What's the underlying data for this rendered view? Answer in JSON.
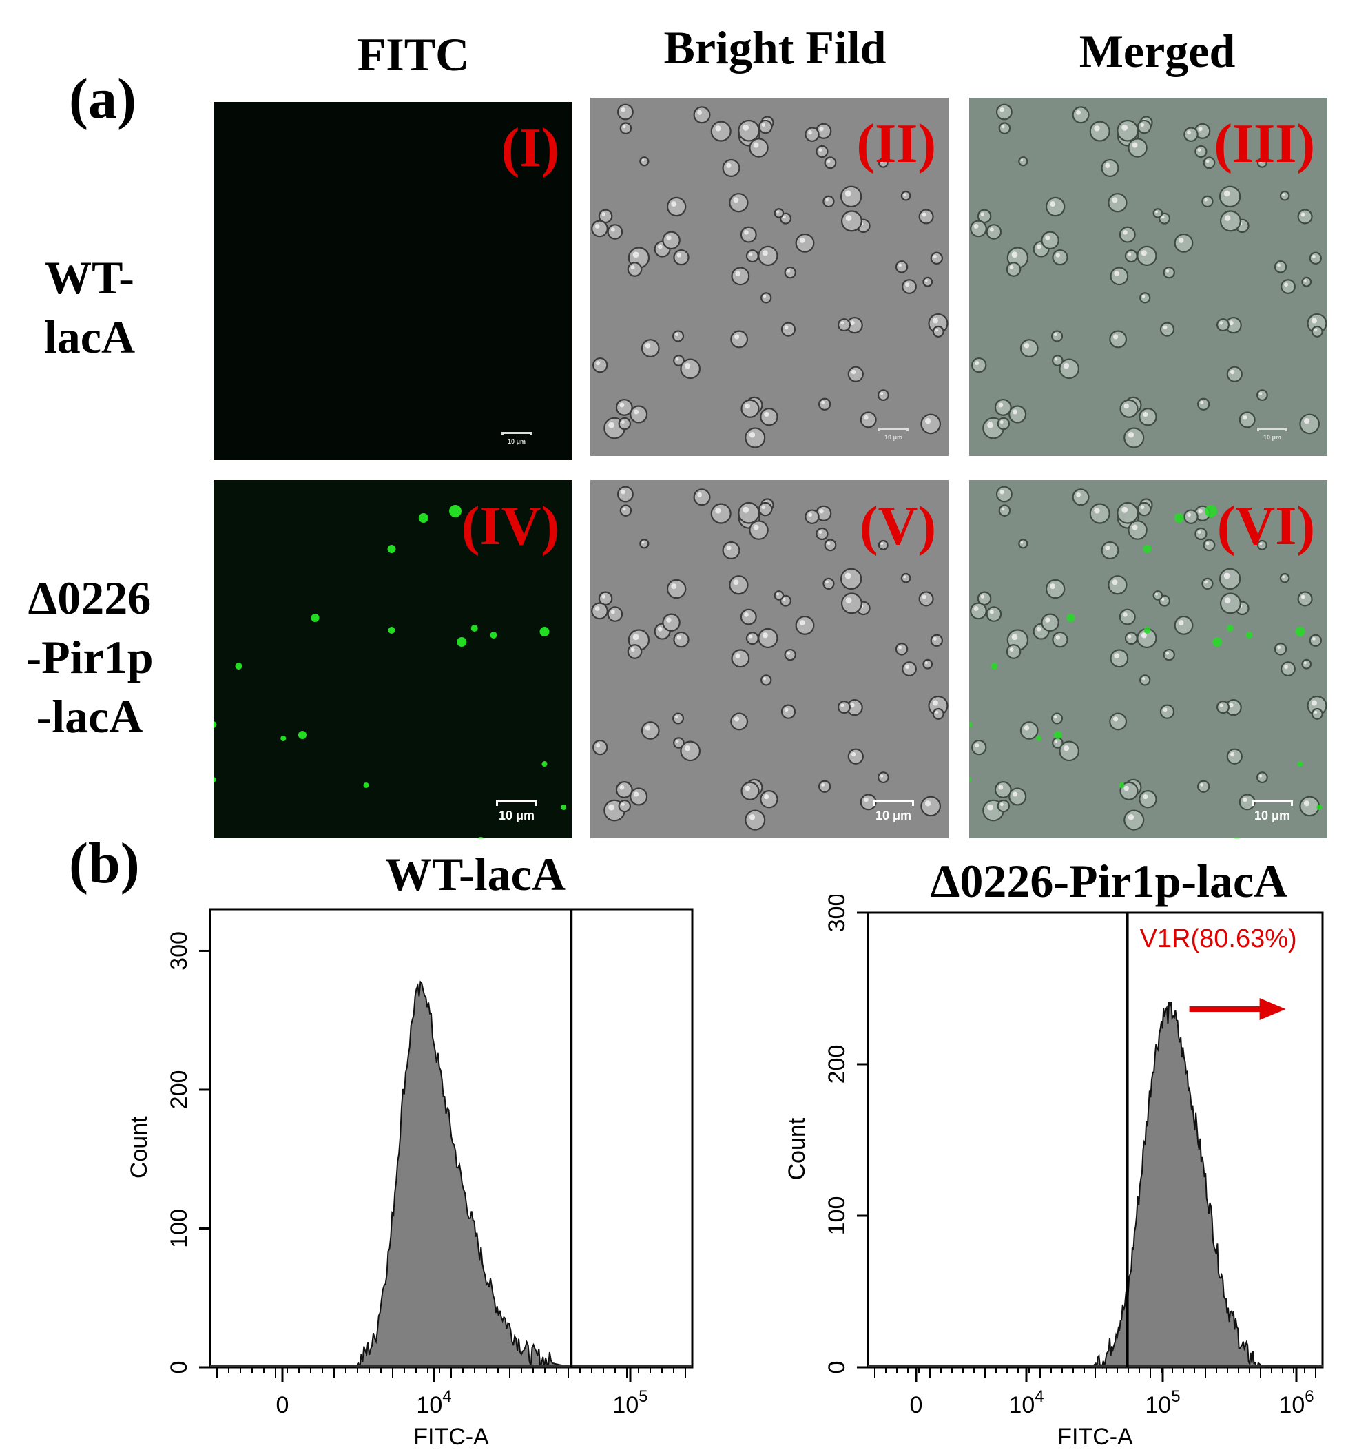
{
  "figure": {
    "panel_a_label": "(a)",
    "panel_b_label": "(b)",
    "columns": [
      "FITC",
      "Bright Fild",
      "Merged"
    ],
    "rows": [
      {
        "line1": "WT-",
        "line2": "lacA",
        "line3": ""
      },
      {
        "line1": "Δ0226",
        "line2": "-Pir1p",
        "line3": "-lacA"
      }
    ],
    "panels": [
      {
        "roman": "(I)",
        "scale": "10 μm",
        "kind": "fitc-dark"
      },
      {
        "roman": "(II)",
        "scale": "10 μm",
        "kind": "bright"
      },
      {
        "roman": "(III)",
        "scale": "10 μm",
        "kind": "merged"
      },
      {
        "roman": "(IV)",
        "scale": "10 μm",
        "kind": "fitc-green"
      },
      {
        "roman": "(V)",
        "scale": "10 μm",
        "kind": "bright"
      },
      {
        "roman": "(VI)",
        "scale": "10 μm",
        "kind": "merged-green"
      }
    ],
    "colors": {
      "roman_label": "#e00000",
      "hist_fill": "#808080",
      "fluor_green": "#22dd22",
      "gate_label": "#e00000"
    }
  },
  "chart_data": [
    {
      "type": "area",
      "title": "WT-lacA",
      "xlabel": "FITC-A",
      "ylabel": "Count",
      "xscale": "biexponential (log above 10^3)",
      "x_ticks": [
        "0",
        "10^4",
        "10^5"
      ],
      "y_ticks": [
        0,
        100,
        200,
        300
      ],
      "ylim": [
        0,
        330
      ],
      "gate_x": 50000,
      "gate_label": "",
      "series": [
        {
          "x": [
            4000,
            5000,
            6000,
            7000,
            8000,
            9000,
            10000,
            12000,
            14000,
            17000,
            20000,
            25000,
            30000,
            40000,
            50000
          ],
          "y": [
            0,
            20,
            90,
            200,
            265,
            275,
            235,
            175,
            130,
            85,
            50,
            25,
            10,
            3,
            0
          ]
        }
      ]
    },
    {
      "type": "area",
      "title": "Δ0226-Pir1p-lacA",
      "xlabel": "FITC-A",
      "ylabel": "Count",
      "xscale": "biexponential (log above 10^3)",
      "x_ticks": [
        "0",
        "10^4",
        "10^5",
        "10^6"
      ],
      "y_ticks": [
        0,
        100,
        200,
        300
      ],
      "ylim": [
        0,
        300
      ],
      "gate_x": 55000,
      "gate_label": "V1R(80.63%)",
      "series": [
        {
          "x": [
            30000,
            40000,
            55000,
            70000,
            85000,
            100000,
            120000,
            150000,
            200000,
            250000,
            300000,
            400000,
            550000
          ],
          "y": [
            0,
            10,
            45,
            130,
            200,
            232,
            235,
            195,
            130,
            75,
            40,
            10,
            0
          ]
        }
      ]
    }
  ]
}
